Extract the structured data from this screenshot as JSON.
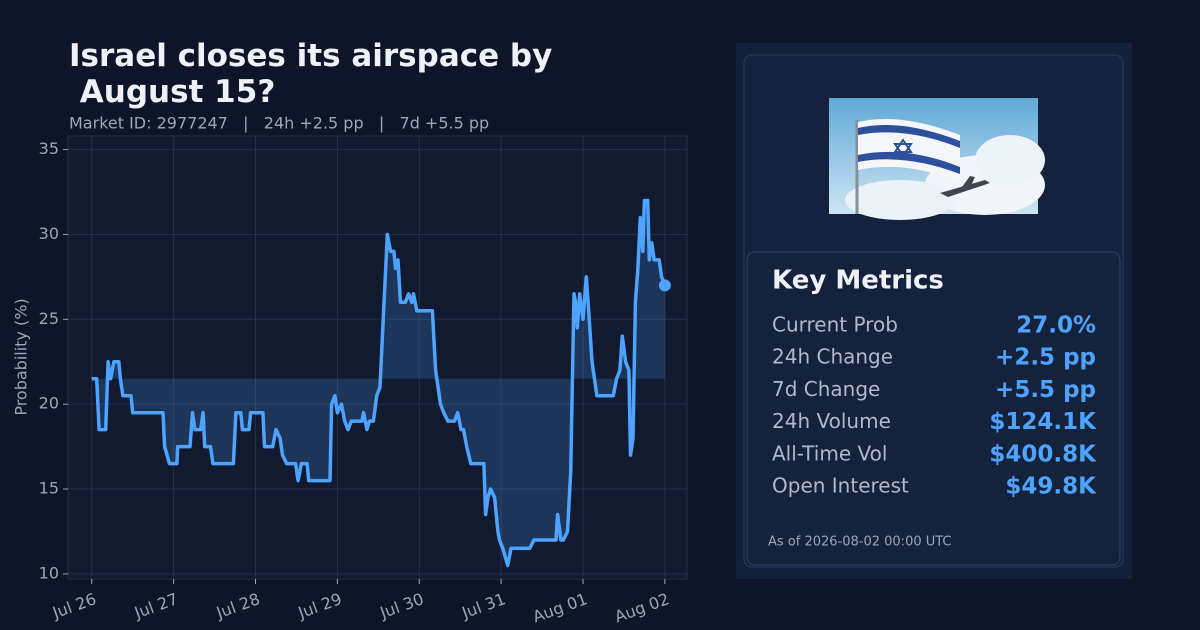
{
  "chart_data": {
    "type": "line",
    "title": "Israel closes its airspace by August 15?",
    "subtitle": "Market ID: 2977247   |   24h +2.5 pp   |   7d +5.5 pp",
    "y_label": "Probability (%)",
    "x": [
      0,
      0.06,
      0.09,
      0.17,
      0.2,
      0.23,
      0.27,
      0.33,
      0.35,
      0.38,
      0.48,
      0.5,
      0.87,
      0.89,
      0.95,
      1.04,
      1.05,
      1.2,
      1.23,
      1.26,
      1.33,
      1.36,
      1.38,
      1.45,
      1.48,
      1.59,
      1.73,
      1.76,
      1.82,
      1.84,
      1.92,
      1.94,
      2.09,
      2.11,
      2.21,
      2.25,
      2.3,
      2.33,
      2.38,
      2.49,
      2.52,
      2.56,
      2.63,
      2.65,
      2.91,
      2.93,
      2.97,
      3.0,
      3.05,
      3.09,
      3.13,
      3.17,
      3.3,
      3.32,
      3.36,
      3.39,
      3.44,
      3.48,
      3.52,
      3.55,
      3.59,
      3.61,
      3.65,
      3.69,
      3.71,
      3.74,
      3.77,
      3.83,
      3.87,
      3.91,
      3.93,
      3.97,
      4.16,
      4.2,
      4.26,
      4.3,
      4.35,
      4.43,
      4.47,
      4.51,
      4.54,
      4.58,
      4.63,
      4.79,
      4.81,
      4.84,
      4.87,
      4.92,
      4.96,
      4.98,
      5.02,
      5.08,
      5.12,
      5.35,
      5.4,
      5.67,
      5.69,
      5.73,
      5.76,
      5.81,
      5.85,
      5.89,
      5.91,
      5.93,
      5.96,
      6.0,
      6.04,
      6.07,
      6.11,
      6.17,
      6.37,
      6.41,
      6.45,
      6.48,
      6.52,
      6.56,
      6.58,
      6.61,
      6.64,
      6.67,
      6.7,
      6.73,
      6.75,
      6.79,
      6.81,
      6.84,
      6.87,
      6.91,
      6.93,
      6.96,
      7.0
    ],
    "values": [
      21.5,
      21.5,
      18.5,
      18.5,
      22.5,
      21.5,
      22.5,
      22.5,
      21.5,
      20.5,
      20.5,
      19.5,
      19.5,
      17.5,
      16.5,
      16.5,
      17.5,
      17.5,
      19.5,
      18.5,
      18.5,
      19.5,
      17.5,
      17.5,
      16.5,
      16.5,
      16.5,
      19.5,
      19.5,
      18.5,
      18.5,
      19.5,
      19.5,
      17.5,
      17.5,
      18.5,
      18,
      17,
      16.5,
      16.5,
      15.5,
      16.5,
      16.5,
      15.5,
      15.5,
      20,
      20.5,
      19.5,
      20,
      19,
      18.5,
      19,
      19,
      19.5,
      18.5,
      19,
      19,
      20.5,
      21,
      24,
      28,
      30,
      29,
      29,
      28,
      28.5,
      26,
      26,
      26.5,
      26,
      26.5,
      25.5,
      25.5,
      22,
      20,
      19.5,
      19,
      19,
      19.5,
      18.5,
      18.5,
      17.5,
      16.5,
      16.5,
      13.5,
      14.5,
      15,
      14.5,
      12.5,
      12,
      11.5,
      10.5,
      11.5,
      11.5,
      12,
      12,
      13.5,
      12,
      12,
      12.5,
      16,
      26.5,
      26,
      24.5,
      26.5,
      25,
      27.5,
      25.5,
      22.5,
      20.5,
      20.5,
      21.5,
      22,
      24,
      22.5,
      22,
      17,
      18,
      26,
      28,
      31,
      29,
      32,
      32,
      28.5,
      29.5,
      28.5,
      28.5,
      28.5,
      27.5,
      27
    ],
    "color": "#4da3ff",
    "fill_baseline": 21.5,
    "last_marker": true,
    "grid": true,
    "xlim": [
      -0.29,
      7.27
    ],
    "xticks": [
      {
        "value": 0,
        "label": "Jul 26"
      },
      {
        "value": 1,
        "label": "Jul 27"
      },
      {
        "value": 2,
        "label": "Jul 28"
      },
      {
        "value": 3,
        "label": "Jul 29"
      },
      {
        "value": 4,
        "label": "Jul 30"
      },
      {
        "value": 5,
        "label": "Jul 31"
      },
      {
        "value": 6,
        "label": "Aug 01"
      },
      {
        "value": 7,
        "label": "Aug 02"
      }
    ],
    "ylim": [
      9.7,
      35.8
    ],
    "yticks": [
      10,
      15,
      20,
      25,
      30,
      35
    ]
  },
  "panel": {
    "heading": "Key Metrics",
    "metrics": [
      {
        "label": "Current Prob",
        "value": "27.0%"
      },
      {
        "label": "24h Change",
        "value": "+2.5 pp"
      },
      {
        "label": "7d Change",
        "value": "+5.5 pp"
      },
      {
        "label": "24h Volume",
        "value": "$124.1K"
      },
      {
        "label": "All-Time Vol",
        "value": "$400.8K"
      },
      {
        "label": "Open Interest",
        "value": "$49.8K"
      }
    ],
    "as_of": "As of 2026-08-02 00:00 UTC"
  }
}
